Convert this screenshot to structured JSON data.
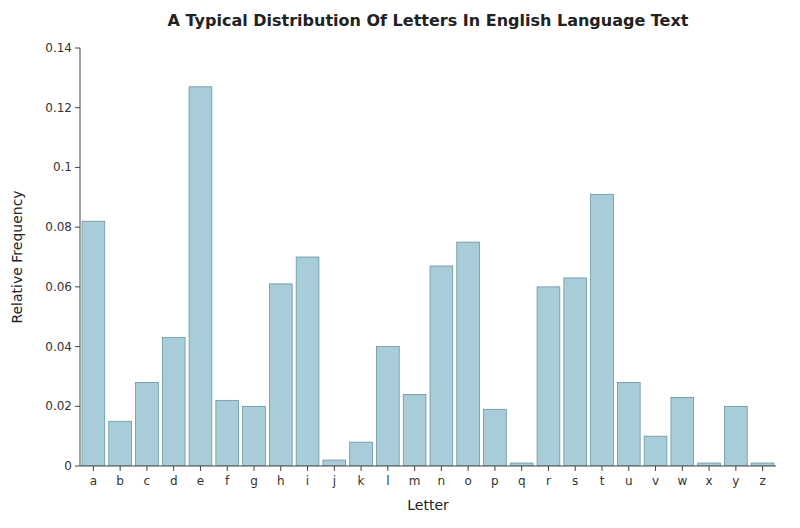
{
  "chart_data": {
    "type": "bar",
    "title": "A Typical Distribution Of Letters In English Language Text",
    "xlabel": "Letter",
    "ylabel": "Relative Frequency",
    "categories": [
      "a",
      "b",
      "c",
      "d",
      "e",
      "f",
      "g",
      "h",
      "i",
      "j",
      "k",
      "l",
      "m",
      "n",
      "o",
      "p",
      "q",
      "r",
      "s",
      "t",
      "u",
      "v",
      "w",
      "x",
      "y",
      "z"
    ],
    "values": [
      0.082,
      0.015,
      0.028,
      0.043,
      0.127,
      0.022,
      0.02,
      0.061,
      0.07,
      0.002,
      0.008,
      0.04,
      0.024,
      0.067,
      0.075,
      0.019,
      0.001,
      0.06,
      0.063,
      0.091,
      0.028,
      0.01,
      0.023,
      0.001,
      0.02,
      0.001
    ],
    "color": "#a8cdd8",
    "ylim": [
      0,
      0.14
    ],
    "yticks": [
      0,
      0.02,
      0.04,
      0.06,
      0.08,
      0.1,
      0.12,
      0.14
    ],
    "grid": false
  }
}
